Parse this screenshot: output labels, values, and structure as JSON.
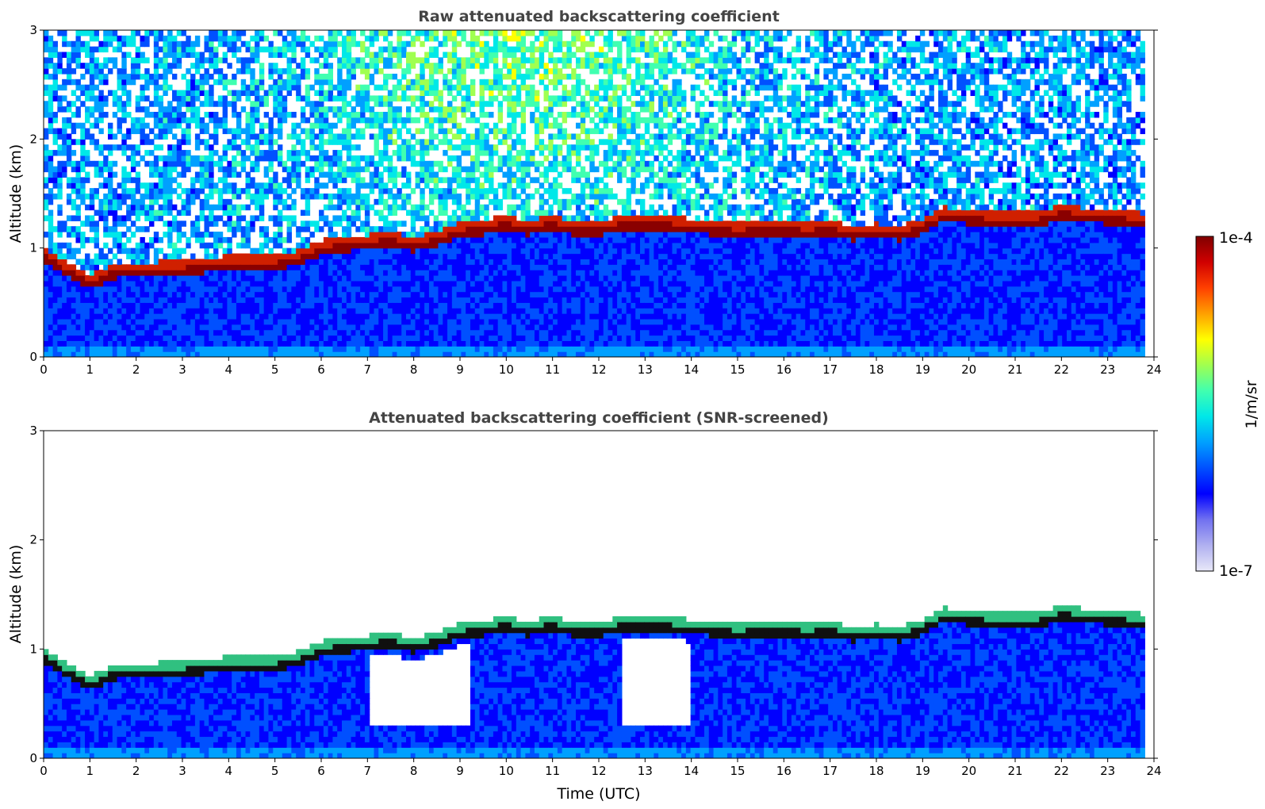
{
  "chart_data": [
    {
      "type": "heatmap",
      "title": "Raw attenuated backscattering coefficient",
      "xlabel": "",
      "ylabel": "Altitude (km)",
      "xlim": [
        0,
        24
      ],
      "ylim": [
        0,
        3
      ],
      "xticks": [
        "0",
        "1",
        "2",
        "3",
        "4",
        "5",
        "6",
        "7",
        "8",
        "9",
        "10",
        "11",
        "12",
        "13",
        "14",
        "15",
        "16",
        "17",
        "18",
        "19",
        "20",
        "21",
        "22",
        "23",
        "24"
      ],
      "yticks": [
        "0",
        "1",
        "2",
        "3"
      ],
      "data_end_hour": 23.8,
      "layer_top_km": [
        [
          0,
          0.95
        ],
        [
          0.5,
          0.82
        ],
        [
          1,
          0.7
        ],
        [
          1.5,
          0.8
        ],
        [
          2,
          0.82
        ],
        [
          3,
          0.83
        ],
        [
          4,
          0.88
        ],
        [
          5,
          0.88
        ],
        [
          5.5,
          0.93
        ],
        [
          6,
          1.02
        ],
        [
          6.5,
          1.05
        ],
        [
          7,
          1.07
        ],
        [
          7.5,
          1.1
        ],
        [
          8,
          1.05
        ],
        [
          8.5,
          1.1
        ],
        [
          9,
          1.18
        ],
        [
          9.5,
          1.2
        ],
        [
          10,
          1.25
        ],
        [
          10.5,
          1.2
        ],
        [
          11,
          1.25
        ],
        [
          11.5,
          1.2
        ],
        [
          12,
          1.2
        ],
        [
          12.5,
          1.25
        ],
        [
          13,
          1.25
        ],
        [
          13.5,
          1.24
        ],
        [
          14,
          1.22
        ],
        [
          14.5,
          1.2
        ],
        [
          15,
          1.18
        ],
        [
          15.5,
          1.2
        ],
        [
          16,
          1.2
        ],
        [
          16.5,
          1.18
        ],
        [
          17,
          1.2
        ],
        [
          17.5,
          1.15
        ],
        [
          18,
          1.18
        ],
        [
          18.5,
          1.15
        ],
        [
          19,
          1.22
        ],
        [
          19.5,
          1.33
        ],
        [
          20,
          1.3
        ],
        [
          20.5,
          1.28
        ],
        [
          21,
          1.28
        ],
        [
          21.5,
          1.28
        ],
        [
          22,
          1.35
        ],
        [
          22.5,
          1.32
        ],
        [
          23,
          1.3
        ],
        [
          23.8,
          1.27
        ]
      ],
      "colorscale": "jet"
    },
    {
      "type": "heatmap",
      "title": "Attenuated backscattering coefficient (SNR-screened)",
      "xlabel": "Time (UTC)",
      "ylabel": "Altitude (km)",
      "xlim": [
        0,
        24
      ],
      "ylim": [
        0,
        3
      ],
      "xticks": [
        "0",
        "1",
        "2",
        "3",
        "4",
        "5",
        "6",
        "7",
        "8",
        "9",
        "10",
        "11",
        "12",
        "13",
        "14",
        "15",
        "16",
        "17",
        "18",
        "19",
        "20",
        "21",
        "22",
        "23",
        "24"
      ],
      "yticks": [
        "0",
        "1",
        "2",
        "3"
      ],
      "data_end_hour": 23.8,
      "colorscale": "jet"
    }
  ],
  "colorbar": {
    "max_label": "1e-4",
    "min_label": "1e-7",
    "unit_label": "1/m/sr",
    "colors": [
      "#e8e8f8",
      "#b0b0f0",
      "#7070f0",
      "#0000ff",
      "#0050ff",
      "#00a0ff",
      "#00e8e8",
      "#40ffb0",
      "#a0ff50",
      "#ffff00",
      "#ffa000",
      "#ff4000",
      "#d00000",
      "#800000"
    ]
  }
}
